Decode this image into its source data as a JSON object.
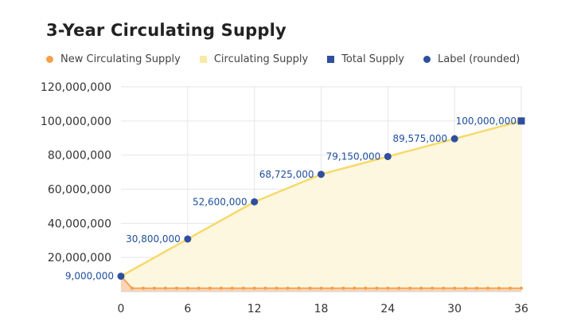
{
  "chart_data": {
    "type": "area",
    "title": "3-Year Circulating Supply",
    "xlabel": "",
    "ylabel": "",
    "xlim": [
      0,
      36
    ],
    "ylim": [
      0,
      120000000
    ],
    "x_ticks": [
      "0",
      "6",
      "12",
      "18",
      "24",
      "30",
      "36"
    ],
    "y_ticks": [
      "20,000,000",
      "40,000,000",
      "60,000,000",
      "80,000,000",
      "100,000,000",
      "120,000,000"
    ],
    "x_tick_values": [
      0,
      6,
      12,
      18,
      24,
      30,
      36
    ],
    "y_tick_values": [
      20000000,
      40000000,
      60000000,
      80000000,
      100000000,
      120000000
    ],
    "grid": true,
    "legend_position": "top-left",
    "series": [
      {
        "name": "New Circulating Supply",
        "style": "area-line-markers",
        "color": "#f5a04a",
        "x": [
          0,
          1,
          2,
          3,
          4,
          5,
          6,
          7,
          8,
          9,
          10,
          11,
          12,
          13,
          14,
          15,
          16,
          17,
          18,
          19,
          20,
          21,
          22,
          23,
          24,
          25,
          26,
          27,
          28,
          29,
          30,
          31,
          32,
          33,
          34,
          35,
          36
        ],
        "y": [
          9000000,
          2000000,
          2000000,
          2000000,
          2000000,
          2000000,
          2000000,
          2000000,
          2000000,
          2000000,
          2000000,
          2000000,
          2000000,
          2000000,
          2000000,
          2000000,
          2000000,
          2000000,
          2000000,
          2000000,
          2000000,
          2000000,
          2000000,
          2000000,
          2000000,
          2000000,
          2000000,
          2000000,
          2000000,
          2000000,
          2000000,
          2000000,
          2000000,
          2000000,
          2000000,
          2000000,
          2000000
        ]
      },
      {
        "name": "Circulating Supply",
        "style": "area",
        "color": "#f7d96a",
        "x": [
          0,
          6,
          12,
          18,
          24,
          30,
          36
        ],
        "y": [
          9000000,
          30800000,
          52600000,
          68725000,
          79150000,
          89575000,
          100000000
        ]
      },
      {
        "name": "Total Supply",
        "style": "square-marker",
        "color": "#2f4f9e",
        "x": [
          36
        ],
        "y": [
          100000000
        ]
      },
      {
        "name": "Label (rounded)",
        "style": "circle-marker",
        "color": "#2f4f9e",
        "x": [
          0,
          6,
          12,
          18,
          24,
          30
        ],
        "y": [
          9000000,
          30800000,
          52600000,
          68725000,
          79150000,
          89575000
        ],
        "labels": [
          "9,000,000",
          "30,800,000",
          "52,600,000",
          "68,725,000",
          "79,150,000",
          "89,575,000"
        ]
      }
    ],
    "total_label": "100,000,000"
  }
}
